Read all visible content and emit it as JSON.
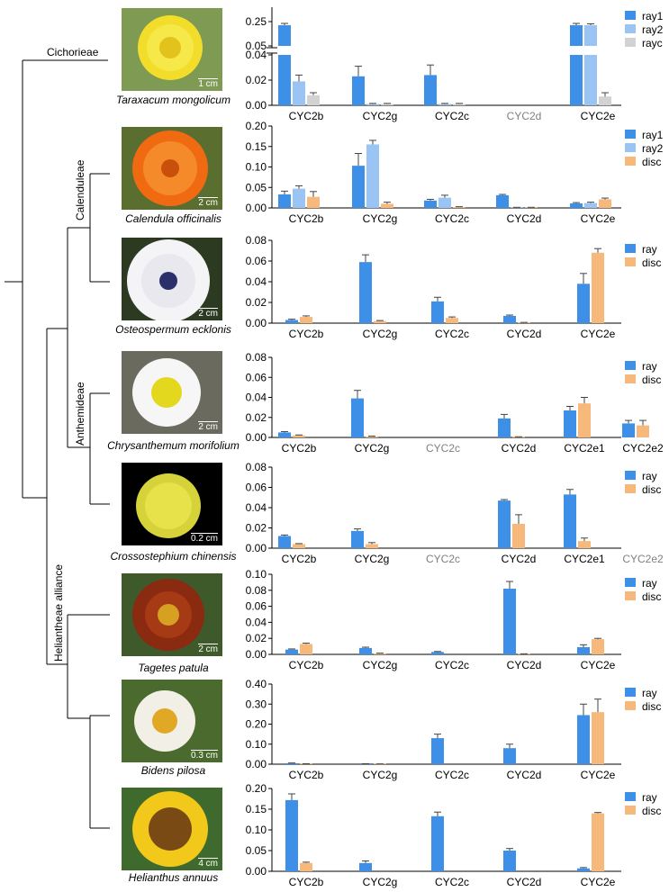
{
  "clades": {
    "cichorieae": "Cichorieae",
    "calenduleae": "Calenduleae",
    "anthemideae": "Anthemideae",
    "heliantheae": "Heliantheae alliance"
  },
  "species": [
    {
      "name": "Taraxacum mongolicum",
      "scale": "1 cm"
    },
    {
      "name": "Calendula officinalis",
      "scale": "2 cm"
    },
    {
      "name": "Osteospermum ecklonis",
      "scale": "2 cm"
    },
    {
      "name": "Chrysanthemum morifolium",
      "scale": "2 cm"
    },
    {
      "name": "Crossostephium chinensis",
      "scale": "0.2 cm"
    },
    {
      "name": "Tagetes patula",
      "scale": "2 cm"
    },
    {
      "name": "Bidens pilosa",
      "scale": "0.3 cm"
    },
    {
      "name": "Helianthus annuus",
      "scale": "4 cm"
    }
  ],
  "colors": {
    "ray": "#3d8fe8",
    "ray1": "#3d8fe8",
    "ray2": "#99c4f3",
    "rayc": "#d2d2d2",
    "disc": "#f6b97b",
    "absent": "#808080",
    "axis": "#000000"
  },
  "chart_data": [
    {
      "type": "bar",
      "species": "Taraxacum mongolicum",
      "categories": [
        "CYC2b",
        "CYC2g",
        "CYC2c",
        "CYC2d",
        "CYC2e"
      ],
      "absent_categories": [
        "CYC2d"
      ],
      "series": [
        {
          "name": "ray1",
          "values": [
            0.22,
            0.023,
            0.024,
            0,
            0.22
          ],
          "errors": [
            0.015,
            0.008,
            0.008,
            0,
            0.015
          ]
        },
        {
          "name": "ray2",
          "values": [
            0.019,
            0.001,
            0.001,
            0,
            0.22
          ],
          "errors": [
            0.005,
            0.0005,
            0.0005,
            0,
            0.012
          ]
        },
        {
          "name": "rayc",
          "values": [
            0.008,
            0.001,
            0.001,
            0,
            0.007
          ],
          "errors": [
            0.002,
            0.0005,
            0.0005,
            0,
            0.003
          ]
        }
      ],
      "broken_axis": true,
      "lower_ylim": [
        0,
        0.04
      ],
      "lower_ticks": [
        0.0,
        0.02,
        0.04
      ],
      "upper_ylim": [
        0.05,
        0.25
      ],
      "upper_ticks": [
        0.05,
        0.25
      ],
      "tick_labels_lower": [
        "0.00",
        "0.02",
        "0.04"
      ],
      "tick_labels_upper": [
        "0.05",
        "0.25"
      ]
    },
    {
      "type": "bar",
      "species": "Calendula officinalis",
      "categories": [
        "CYC2b",
        "CYC2g",
        "CYC2c",
        "CYC2d",
        "CYC2e"
      ],
      "absent_categories": [],
      "series": [
        {
          "name": "ray1",
          "values": [
            0.033,
            0.103,
            0.018,
            0.031,
            0.011
          ],
          "errors": [
            0.008,
            0.03,
            0.003,
            0.002,
            0.002
          ]
        },
        {
          "name": "ray2",
          "values": [
            0.047,
            0.155,
            0.025,
            0.001,
            0.012
          ],
          "errors": [
            0.007,
            0.01,
            0.006,
            0.0005,
            0.002
          ]
        },
        {
          "name": "disc",
          "values": [
            0.027,
            0.01,
            0.002,
            0.001,
            0.021
          ],
          "errors": [
            0.013,
            0.004,
            0.001,
            0.0005,
            0.003
          ]
        }
      ],
      "ylim": [
        0,
        0.2
      ],
      "ticks": [
        0.0,
        0.05,
        0.1,
        0.15,
        0.2
      ],
      "tick_labels": [
        "0.00",
        "0.05",
        "0.10",
        "0.15",
        "0.20"
      ]
    },
    {
      "type": "bar",
      "species": "Osteospermum ecklonis",
      "categories": [
        "CYC2b",
        "CYC2g",
        "CYC2c",
        "CYC2d",
        "CYC2e"
      ],
      "absent_categories": [],
      "series": [
        {
          "name": "ray",
          "values": [
            0.003,
            0.059,
            0.021,
            0.007,
            0.038
          ],
          "errors": [
            0.0008,
            0.007,
            0.004,
            0.0008,
            0.01
          ]
        },
        {
          "name": "disc",
          "values": [
            0.006,
            0.002,
            0.005,
            0.0005,
            0.068
          ],
          "errors": [
            0.001,
            0.0005,
            0.001,
            0.0002,
            0.004
          ]
        }
      ],
      "ylim": [
        0,
        0.08
      ],
      "ticks": [
        0.0,
        0.02,
        0.04,
        0.06,
        0.08
      ],
      "tick_labels": [
        "0.00",
        "0.02",
        "0.04",
        "0.06",
        "0.08"
      ]
    },
    {
      "type": "bar",
      "species": "Chrysanthemum morifolium",
      "categories": [
        "CYC2b",
        "CYC2g",
        "CYC2c",
        "CYC2d",
        "CYC2e1",
        "CYC2e2"
      ],
      "absent_categories": [
        "CYC2c"
      ],
      "series": [
        {
          "name": "ray",
          "values": [
            0.005,
            0.039,
            0,
            0.019,
            0.027,
            0.014
          ],
          "errors": [
            0.0008,
            0.008,
            0,
            0.004,
            0.004,
            0.003
          ]
        },
        {
          "name": "disc",
          "values": [
            0.002,
            0.001,
            0,
            0.0005,
            0.034,
            0.012
          ],
          "errors": [
            0.0005,
            0.0003,
            0,
            0.0002,
            0.006,
            0.005
          ]
        }
      ],
      "ylim": [
        0,
        0.08
      ],
      "ticks": [
        0.0,
        0.02,
        0.04,
        0.06,
        0.08
      ],
      "tick_labels": [
        "0.00",
        "0.02",
        "0.04",
        "0.06",
        "0.08"
      ]
    },
    {
      "type": "bar",
      "species": "Crossostephium chinensis",
      "categories": [
        "CYC2b",
        "CYC2g",
        "CYC2c",
        "CYC2d",
        "CYC2e1",
        "CYC2e2"
      ],
      "absent_categories": [
        "CYC2c",
        "CYC2e2"
      ],
      "series": [
        {
          "name": "ray",
          "values": [
            0.012,
            0.017,
            0,
            0.047,
            0.053,
            0
          ],
          "errors": [
            0.001,
            0.002,
            0,
            0.001,
            0.005,
            0
          ]
        },
        {
          "name": "disc",
          "values": [
            0.004,
            0.004,
            0,
            0.024,
            0.007,
            0
          ],
          "errors": [
            0.0005,
            0.0015,
            0,
            0.009,
            0.003,
            0
          ]
        }
      ],
      "ylim": [
        0,
        0.08
      ],
      "ticks": [
        0.0,
        0.02,
        0.04,
        0.06,
        0.08
      ],
      "tick_labels": [
        "0.00",
        "0.02",
        "0.04",
        "0.06",
        "0.08"
      ]
    },
    {
      "type": "bar",
      "species": "Tagetes patula",
      "categories": [
        "CYC2b",
        "CYC2g",
        "CYC2c",
        "CYC2d",
        "CYC2e"
      ],
      "absent_categories": [],
      "series": [
        {
          "name": "ray",
          "values": [
            0.006,
            0.008,
            0.003,
            0.082,
            0.009
          ],
          "errors": [
            0.0008,
            0.001,
            0.0006,
            0.009,
            0.003
          ]
        },
        {
          "name": "disc",
          "values": [
            0.013,
            0.001,
            0,
            0.0005,
            0.019
          ],
          "errors": [
            0.001,
            0.0005,
            0,
            0.0002,
            0.001
          ]
        }
      ],
      "ylim": [
        0,
        0.1
      ],
      "ticks": [
        0.0,
        0.02,
        0.04,
        0.06,
        0.08,
        0.1
      ],
      "tick_labels": [
        "0.00",
        "0.02",
        "0.04",
        "0.06",
        "0.08",
        "0.10"
      ]
    },
    {
      "type": "bar",
      "species": "Bidens pilosa",
      "categories": [
        "CYC2b",
        "CYC2g",
        "CYC2c",
        "CYC2d",
        "CYC2e"
      ],
      "absent_categories": [],
      "series": [
        {
          "name": "ray",
          "values": [
            0.005,
            0.002,
            0.13,
            0.08,
            0.245
          ],
          "errors": [
            0.001,
            0.0005,
            0.02,
            0.02,
            0.055
          ]
        },
        {
          "name": "disc",
          "values": [
            0.002,
            0.001,
            0,
            0,
            0.26
          ],
          "errors": [
            0.0005,
            0.0003,
            0,
            0,
            0.065
          ]
        }
      ],
      "ylim": [
        0,
        0.4
      ],
      "ticks": [
        0.0,
        0.1,
        0.2,
        0.3,
        0.4
      ],
      "tick_labels": [
        "0.00",
        "0.10",
        "0.20",
        "0.30",
        "0.40"
      ]
    },
    {
      "type": "bar",
      "species": "Helianthus annuus",
      "categories": [
        "CYC2b",
        "CYC2g",
        "CYC2c",
        "CYC2d",
        "CYC2e"
      ],
      "absent_categories": [],
      "series": [
        {
          "name": "ray",
          "values": [
            0.172,
            0.02,
            0.133,
            0.05,
            0.007
          ],
          "errors": [
            0.015,
            0.005,
            0.01,
            0.005,
            0.002
          ]
        },
        {
          "name": "disc",
          "values": [
            0.02,
            0,
            0,
            0,
            0.14
          ],
          "errors": [
            0.002,
            0,
            0,
            0,
            0.002
          ]
        }
      ],
      "ylim": [
        0,
        0.2
      ],
      "ticks": [
        0.0,
        0.05,
        0.1,
        0.15,
        0.2
      ],
      "tick_labels": [
        "0.00",
        "0.05",
        "0.10",
        "0.15",
        "0.20"
      ]
    }
  ]
}
